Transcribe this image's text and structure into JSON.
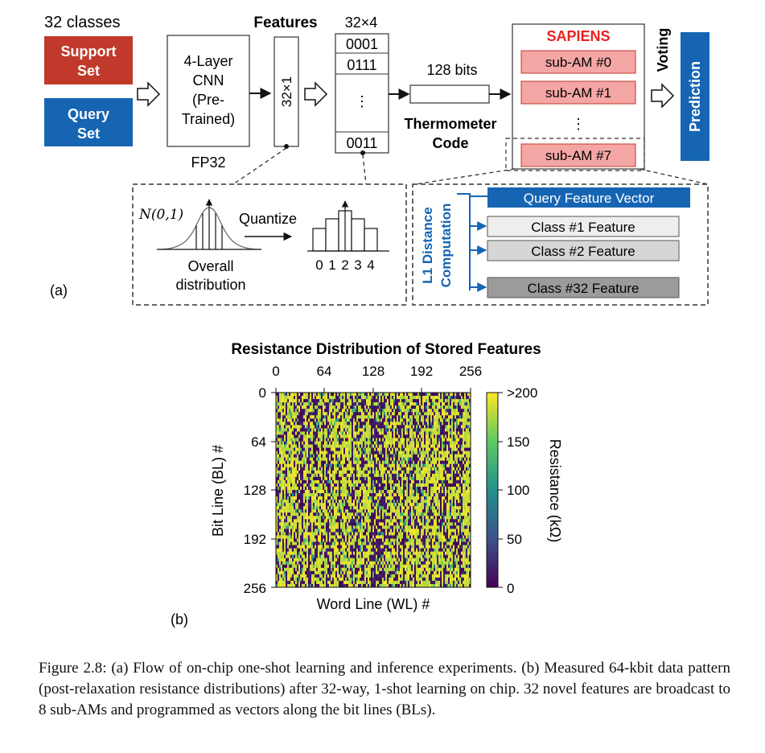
{
  "panel_a": {
    "label": "(a)",
    "classes_label": "32 classes",
    "support_set": [
      "Support",
      "Set"
    ],
    "query_set": [
      "Query",
      "Set"
    ],
    "cnn_box": [
      "4-Layer",
      "CNN",
      "(Pre-",
      "Trained)"
    ],
    "fp32_label": "FP32",
    "features_title": "Features",
    "features_box": "32×1",
    "matrix_title": "32×4",
    "matrix_rows": [
      "0001",
      "0111",
      "⋮",
      "0011"
    ],
    "bits_label": "128 bits",
    "thermometer_label": [
      "Thermometer",
      "Code"
    ],
    "sapiens_title": "SAPIENS",
    "sub_ams": [
      "sub-AM #0",
      "sub-AM #1",
      "⋮",
      "sub-AM #7"
    ],
    "voting_label": "Voting",
    "prediction_label": "Prediction",
    "quantize": {
      "dist_label": "N(0,1)",
      "quantize_label": "Quantize",
      "overall_label": [
        "Overall",
        "distribution"
      ],
      "bins": [
        "0",
        "1",
        "2",
        "3",
        "4"
      ]
    },
    "l1": {
      "label": [
        "L1 Distance",
        "Computation"
      ],
      "query_vector": "Query Feature Vector",
      "class_features": [
        "Class #1 Feature",
        "Class #2 Feature",
        "Class #32 Feature"
      ]
    },
    "colors": {
      "support": "#c0392b",
      "query": "#1565b3",
      "sapiens_red": "#e8231f",
      "sub_am_fill": "#f4a6a4",
      "prediction": "#1565b3",
      "l1_blue": "#1565b3"
    }
  },
  "panel_b": {
    "label": "(b)",
    "chart_data": {
      "type": "heatmap",
      "title": "Resistance Distribution of Stored Features",
      "xlabel": "Word Line (WL) #",
      "ylabel": "Bit Line (BL) #",
      "x_ticks": [
        "0",
        "64",
        "128",
        "192",
        "256"
      ],
      "y_ticks": [
        "0",
        "64",
        "128",
        "192",
        "256"
      ],
      "xlim": [
        0,
        256
      ],
      "ylim": [
        0,
        256
      ],
      "colorbar_label": "Resistance (kΩ)",
      "colorbar_ticks": [
        "0",
        "50",
        "100",
        "150",
        ">200"
      ],
      "color_range": [
        0,
        200
      ],
      "colormap": "viridis",
      "pattern": "dense 256×256 binary-like map; mostly yellow (>200 kΩ) and dark purple (~0 kΩ) cells arranged in vertical streaks, few intermediate green/teal cells"
    }
  },
  "caption": "Figure 2.8: (a) Flow of on-chip one-shot learning and inference experiments. (b) Measured 64-kbit data pattern (post-relaxation resistance distributions) after 32-way, 1-shot learning on chip. 32 novel features are broadcast to 8 sub-AMs and programmed as vectors along the bit lines (BLs)."
}
